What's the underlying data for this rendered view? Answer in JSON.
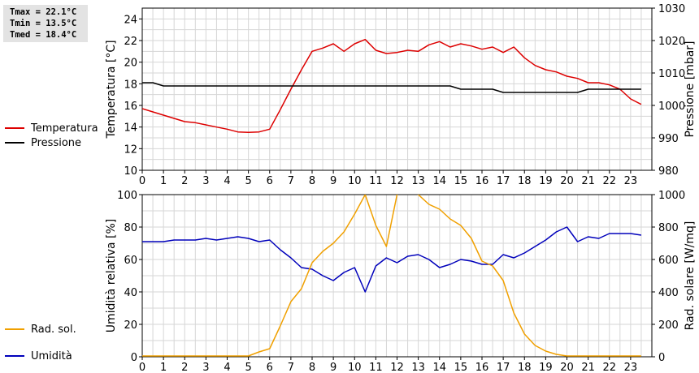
{
  "stats": {
    "tmax": "Tmax = 22.1°C",
    "tmin": "Tmin = 13.5°C",
    "tmed": "Tmed = 18.4°C"
  },
  "chart_data": [
    {
      "type": "line",
      "x_ticks": [
        "0",
        "1",
        "2",
        "3",
        "4",
        "5",
        "6",
        "7",
        "8",
        "9",
        "10",
        "11",
        "12",
        "13",
        "14",
        "15",
        "16",
        "17",
        "18",
        "19",
        "20",
        "21",
        "22",
        "23"
      ],
      "xlim": [
        0,
        24
      ],
      "ylabel": "Temperatura [°C]",
      "ylabel2": "Pressione [mbar]",
      "ylim": [
        10,
        25
      ],
      "ylim2": [
        980,
        1030
      ],
      "y_ticks": [
        "10",
        "12",
        "14",
        "16",
        "18",
        "20",
        "22",
        "24"
      ],
      "y2_ticks": [
        "980",
        "990",
        "1000",
        "1010",
        "1020",
        "1030"
      ],
      "grid": true,
      "legend_position": "left",
      "series": [
        {
          "name": "Temperatura",
          "color": "#dd0000",
          "axis": "left",
          "x": [
            0,
            0.5,
            1,
            1.5,
            2,
            2.5,
            3,
            3.5,
            4,
            4.5,
            5,
            5.5,
            6,
            6.5,
            7,
            7.5,
            8,
            8.5,
            9,
            9.5,
            10,
            10.5,
            11,
            11.5,
            12,
            12.5,
            13,
            13.5,
            14,
            14.5,
            15,
            15.5,
            16,
            16.5,
            17,
            17.5,
            18,
            18.5,
            19,
            19.5,
            20,
            20.5,
            21,
            21.5,
            22,
            22.5,
            23,
            23.5
          ],
          "values": [
            15.7,
            15.4,
            15.1,
            14.8,
            14.5,
            14.4,
            14.2,
            14.0,
            13.8,
            13.55,
            13.5,
            13.55,
            13.8,
            15.6,
            17.5,
            19.3,
            21.0,
            21.3,
            21.7,
            21.0,
            21.7,
            22.1,
            21.1,
            20.8,
            20.9,
            21.1,
            21.0,
            21.6,
            21.9,
            21.4,
            21.7,
            21.5,
            21.2,
            21.4,
            20.9,
            21.4,
            20.4,
            19.7,
            19.3,
            19.1,
            18.7,
            18.5,
            18.1,
            18.1,
            17.9,
            17.5,
            16.6,
            16.1
          ]
        },
        {
          "name": "Pressione",
          "color": "#000000",
          "axis": "right",
          "x": [
            0,
            0.5,
            1,
            1.5,
            2,
            2.5,
            3,
            3.5,
            4,
            4.5,
            5,
            5.5,
            6,
            6.5,
            7,
            7.5,
            8,
            8.5,
            9,
            9.5,
            10,
            10.5,
            11,
            11.5,
            12,
            12.5,
            13,
            13.5,
            14,
            14.5,
            15,
            15.5,
            16,
            16.5,
            17,
            17.5,
            18,
            18.5,
            19,
            19.5,
            20,
            20.5,
            21,
            21.5,
            22,
            22.5,
            23,
            23.5
          ],
          "values": [
            1007,
            1007,
            1006,
            1006,
            1006,
            1006,
            1006,
            1006,
            1006,
            1006,
            1006,
            1006,
            1006,
            1006,
            1006,
            1006,
            1006,
            1006,
            1006,
            1006,
            1006,
            1006,
            1006,
            1006,
            1006,
            1006,
            1006,
            1006,
            1006,
            1006,
            1005,
            1005,
            1005,
            1005,
            1004,
            1004,
            1004,
            1004,
            1004,
            1004,
            1004,
            1004,
            1005,
            1005,
            1005,
            1005,
            1005,
            1005
          ]
        }
      ]
    },
    {
      "type": "line",
      "x_ticks": [
        "0",
        "1",
        "2",
        "3",
        "4",
        "5",
        "6",
        "7",
        "8",
        "9",
        "10",
        "11",
        "12",
        "13",
        "14",
        "15",
        "16",
        "17",
        "18",
        "19",
        "20",
        "21",
        "22",
        "23"
      ],
      "xlim": [
        0,
        24
      ],
      "ylabel": "Umidità relativa [%]",
      "ylabel2": "Rad. solare [W/mq]",
      "ylim": [
        0,
        100
      ],
      "ylim2": [
        0,
        1000
      ],
      "y_ticks": [
        "0",
        "20",
        "40",
        "60",
        "80",
        "100"
      ],
      "y2_ticks": [
        "0",
        "200",
        "400",
        "600",
        "800",
        "1000"
      ],
      "grid": true,
      "legend_position": "left",
      "series": [
        {
          "name": "Umidità",
          "color": "#0000bb",
          "axis": "left",
          "x": [
            0,
            0.5,
            1,
            1.5,
            2,
            2.5,
            3,
            3.5,
            4,
            4.5,
            5,
            5.5,
            6,
            6.5,
            7,
            7.5,
            8,
            8.5,
            9,
            9.5,
            10,
            10.5,
            11,
            11.5,
            12,
            12.5,
            13,
            13.5,
            14,
            14.5,
            15,
            15.5,
            16,
            16.5,
            17,
            17.5,
            18,
            18.5,
            19,
            19.5,
            20,
            20.5,
            21,
            21.5,
            22,
            22.5,
            23,
            23.5
          ],
          "values": [
            71,
            71,
            71,
            72,
            72,
            72,
            73,
            72,
            73,
            74,
            73,
            71,
            72,
            66,
            61,
            55,
            54,
            50,
            47,
            52,
            55,
            40,
            56,
            61,
            58,
            62,
            63,
            60,
            55,
            57,
            60,
            59,
            57,
            57,
            63,
            61,
            64,
            68,
            72,
            77,
            80,
            71,
            74,
            73,
            76,
            76,
            76,
            75
          ]
        },
        {
          "name": "Rad. sol.",
          "color": "#f0a000",
          "axis": "right",
          "x": [
            0,
            0.5,
            1,
            1.5,
            2,
            2.5,
            3,
            3.5,
            4,
            4.5,
            5,
            5.5,
            6,
            6.5,
            7,
            7.5,
            8,
            8.5,
            9,
            9.5,
            10,
            10.5,
            11,
            11.5,
            12,
            12.5,
            13,
            13.5,
            14,
            14.5,
            15,
            15.5,
            16,
            16.5,
            17,
            17.5,
            18,
            18.5,
            19,
            19.5,
            20,
            20.5,
            21,
            21.5,
            22,
            22.5,
            23,
            23.5
          ],
          "values": [
            5,
            5,
            5,
            5,
            5,
            5,
            5,
            5,
            5,
            5,
            5,
            30,
            50,
            190,
            340,
            420,
            580,
            650,
            700,
            770,
            880,
            1000,
            810,
            680,
            1000,
            1060,
            1000,
            940,
            910,
            850,
            810,
            730,
            590,
            560,
            470,
            270,
            140,
            70,
            35,
            15,
            5,
            5,
            5,
            5,
            5,
            5,
            5,
            5
          ]
        }
      ]
    }
  ]
}
